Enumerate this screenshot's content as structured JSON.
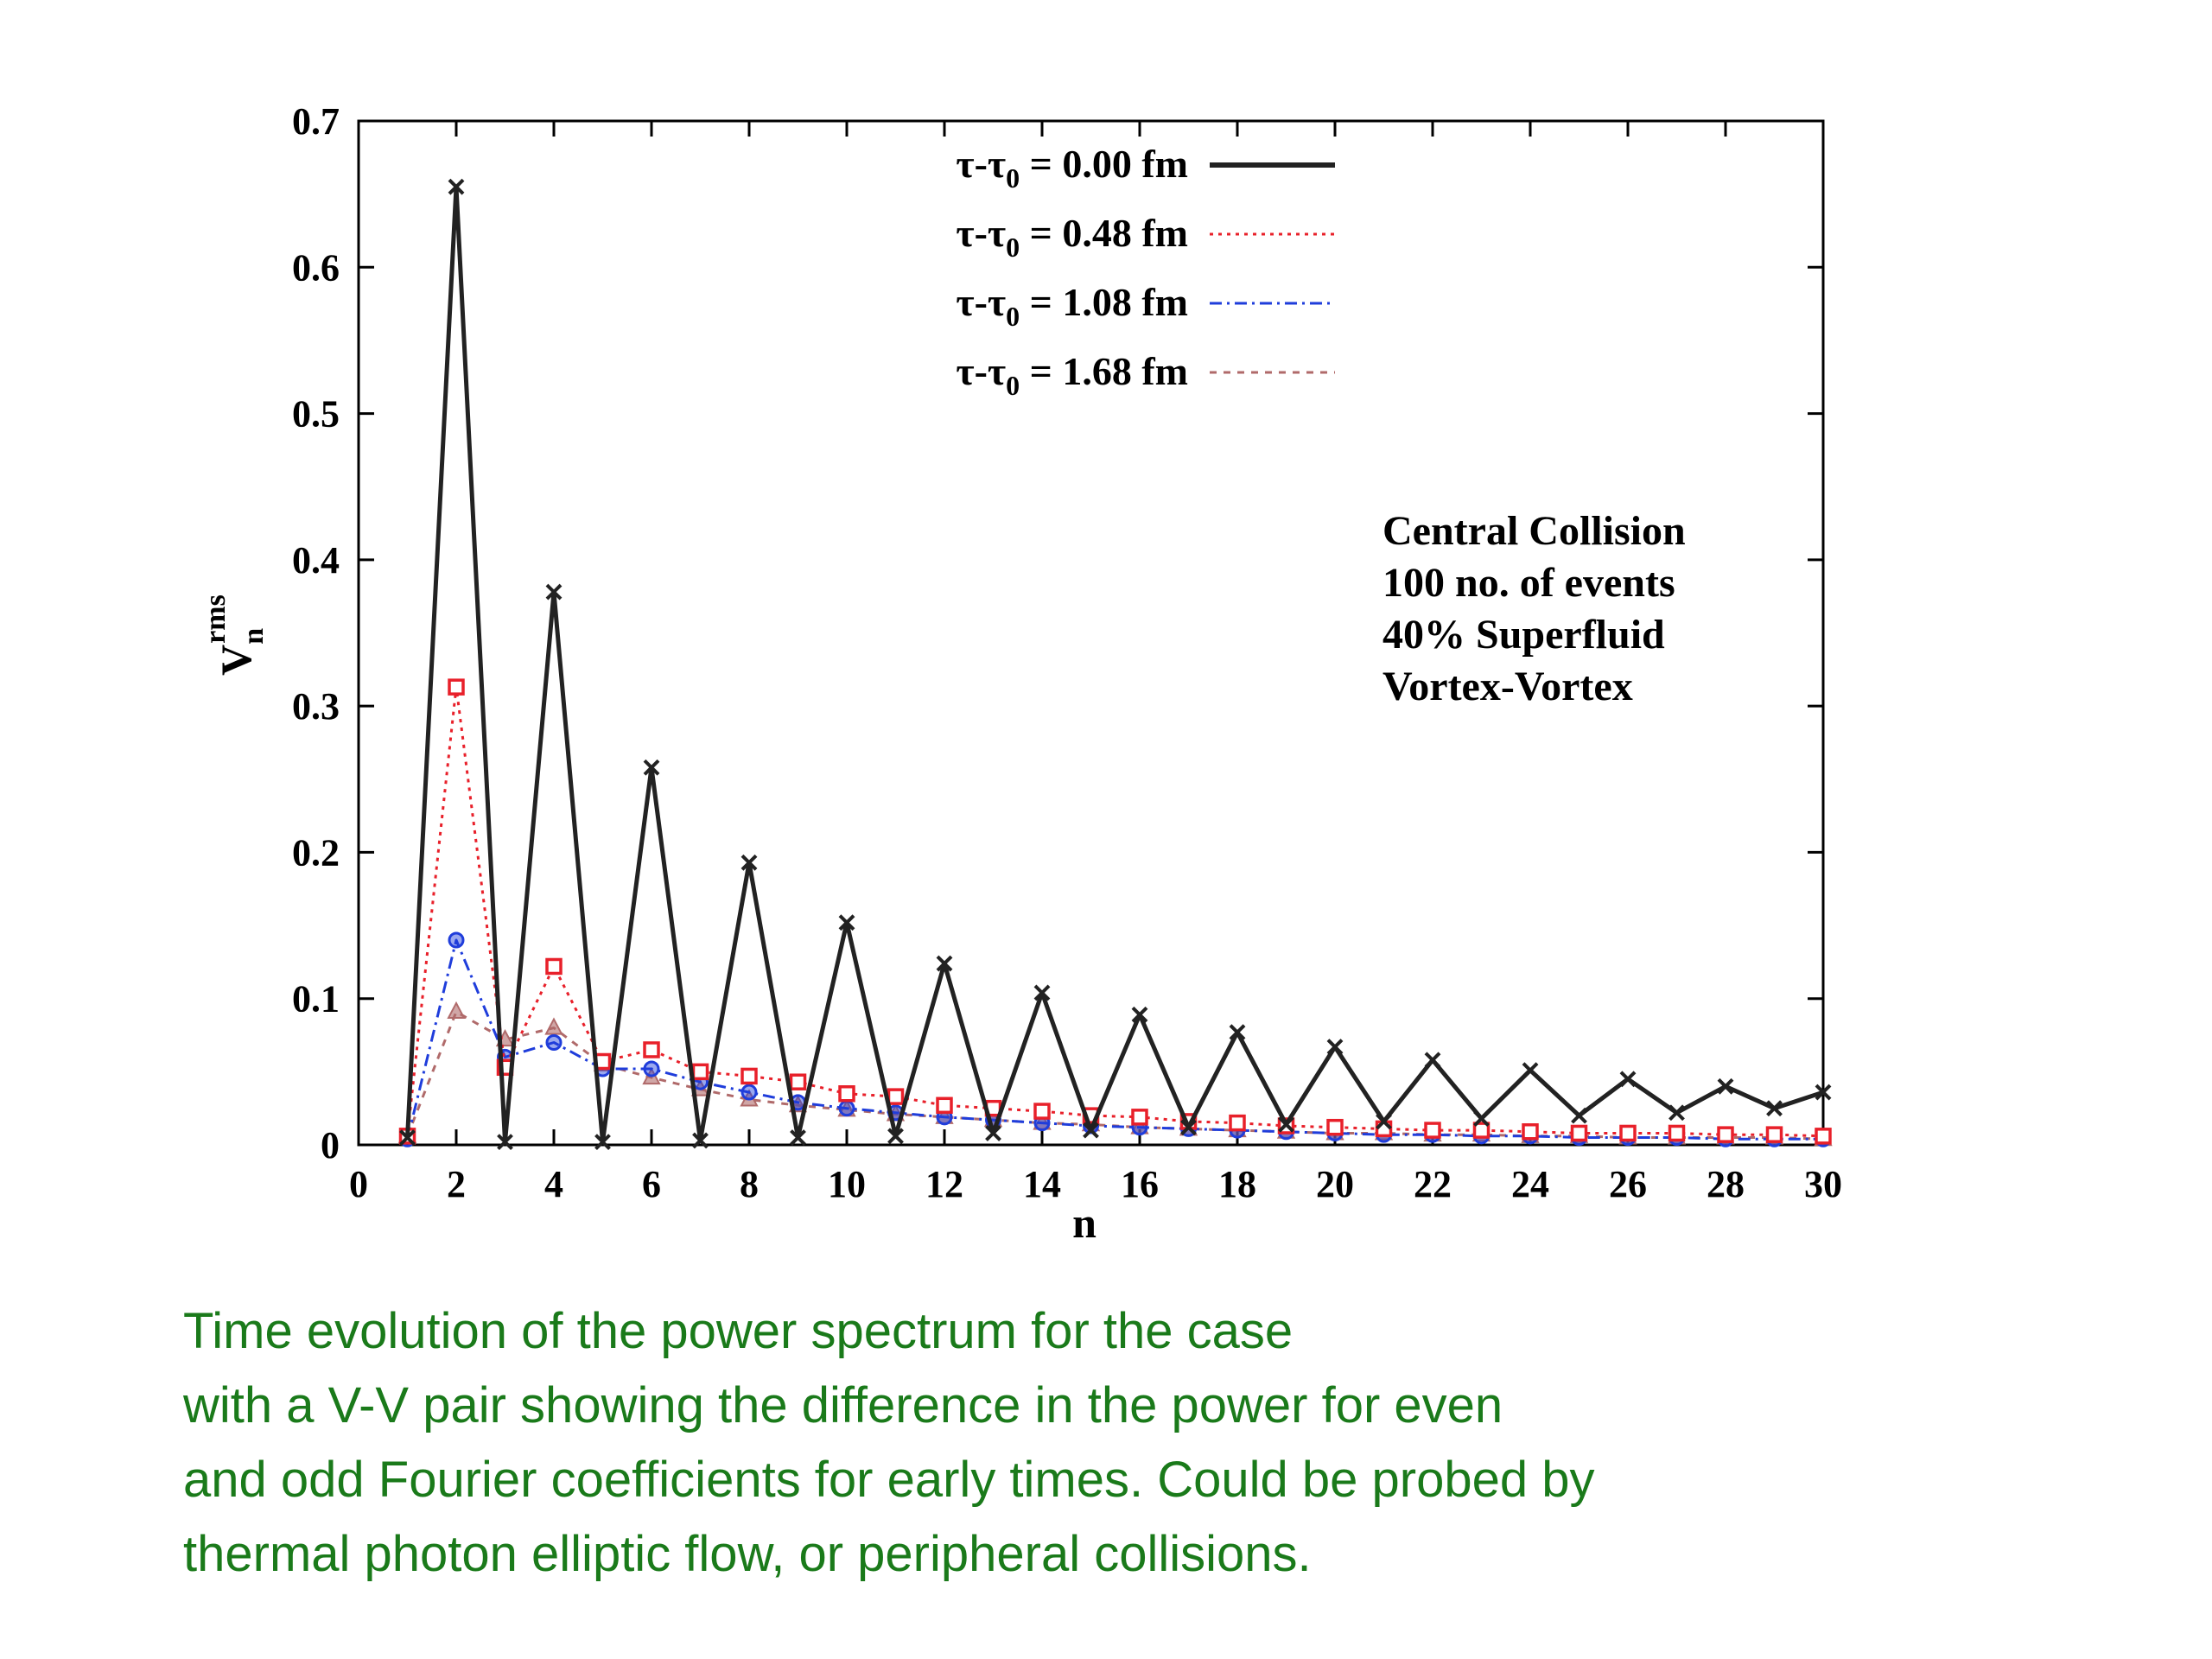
{
  "chart_data": {
    "type": "line",
    "xlabel": "n",
    "ylabel": "V",
    "ylabel_sub": "n",
    "ylabel_sup": "rms",
    "xlim": [
      0,
      30
    ],
    "ylim": [
      0,
      0.7
    ],
    "x_ticks": [
      0,
      2,
      4,
      6,
      8,
      10,
      12,
      14,
      16,
      18,
      20,
      22,
      24,
      26,
      28,
      30
    ],
    "y_ticks": [
      0,
      0.1,
      0.2,
      0.3,
      0.4,
      0.5,
      0.6,
      0.7
    ],
    "y_tick_labels": [
      "0",
      "0.1",
      "0.2",
      "0.3",
      "0.4",
      "0.5",
      "0.6",
      "0.7"
    ],
    "grid": false,
    "legend_position": "top-center",
    "series": [
      {
        "name": "τ-τ0 = 0.00 fm",
        "legend_prefix": "τ-τ",
        "legend_sub": "0",
        "legend_suffix": " = 0.00 fm",
        "color": "#222222",
        "dash": "",
        "marker": "x",
        "width": 5,
        "x": [
          1,
          2,
          3,
          4,
          5,
          6,
          7,
          8,
          9,
          10,
          11,
          12,
          13,
          14,
          15,
          16,
          17,
          18,
          19,
          20,
          21,
          22,
          23,
          24,
          25,
          26,
          27,
          28,
          29,
          30
        ],
        "y": [
          0.005,
          0.655,
          0.002,
          0.378,
          0.002,
          0.258,
          0.003,
          0.193,
          0.005,
          0.152,
          0.006,
          0.124,
          0.008,
          0.104,
          0.01,
          0.089,
          0.012,
          0.077,
          0.014,
          0.067,
          0.016,
          0.058,
          0.018,
          0.051,
          0.02,
          0.045,
          0.022,
          0.04,
          0.025,
          0.036
        ]
      },
      {
        "name": "τ-τ0 = 0.48 fm",
        "legend_prefix": "τ-τ",
        "legend_sub": "0",
        "legend_suffix": " = 0.48 fm",
        "color": "#e8202a",
        "dash": "4,6",
        "marker": "square",
        "width": 3,
        "x": [
          1,
          2,
          3,
          4,
          5,
          6,
          7,
          8,
          9,
          10,
          11,
          12,
          13,
          14,
          15,
          16,
          17,
          18,
          19,
          20,
          21,
          22,
          23,
          24,
          25,
          26,
          27,
          28,
          29,
          30
        ],
        "y": [
          0.006,
          0.313,
          0.053,
          0.122,
          0.057,
          0.065,
          0.05,
          0.047,
          0.043,
          0.035,
          0.033,
          0.027,
          0.025,
          0.023,
          0.02,
          0.019,
          0.016,
          0.015,
          0.013,
          0.012,
          0.011,
          0.01,
          0.01,
          0.009,
          0.008,
          0.008,
          0.008,
          0.007,
          0.007,
          0.006
        ]
      },
      {
        "name": "τ-τ0 = 1.08 fm",
        "legend_prefix": "τ-τ",
        "legend_sub": "0",
        "legend_suffix": " = 1.08 fm",
        "color": "#1f3ddb",
        "dash": "14,6,3,6",
        "marker": "circle",
        "width": 3,
        "x": [
          1,
          2,
          3,
          4,
          5,
          6,
          7,
          8,
          9,
          10,
          11,
          12,
          13,
          14,
          15,
          16,
          17,
          18,
          19,
          20,
          21,
          22,
          23,
          24,
          25,
          26,
          27,
          28,
          29,
          30
        ],
        "y": [
          0.004,
          0.14,
          0.06,
          0.07,
          0.052,
          0.052,
          0.043,
          0.036,
          0.029,
          0.025,
          0.022,
          0.019,
          0.017,
          0.015,
          0.013,
          0.012,
          0.011,
          0.01,
          0.009,
          0.008,
          0.007,
          0.007,
          0.006,
          0.006,
          0.005,
          0.005,
          0.005,
          0.004,
          0.004,
          0.004
        ]
      },
      {
        "name": "τ-τ0 = 1.68 fm",
        "legend_prefix": "τ-τ",
        "legend_sub": "0",
        "legend_suffix": " = 1.68 fm",
        "color": "#b06a6a",
        "dash": "8,8",
        "marker": "triangle",
        "width": 3,
        "x": [
          1,
          2,
          3,
          4,
          5,
          6,
          7,
          8,
          9,
          10,
          11,
          12,
          13,
          14,
          15,
          16,
          17,
          18,
          19,
          20,
          21,
          22,
          23,
          24,
          25,
          26,
          27,
          28,
          29,
          30
        ],
        "y": [
          0.006,
          0.091,
          0.072,
          0.08,
          0.055,
          0.046,
          0.038,
          0.031,
          0.027,
          0.024,
          0.021,
          0.019,
          0.017,
          0.015,
          0.014,
          0.012,
          0.011,
          0.01,
          0.009,
          0.008,
          0.008,
          0.007,
          0.007,
          0.006,
          0.006,
          0.005,
          0.005,
          0.005,
          0.005,
          0.004
        ]
      }
    ],
    "annotations": [
      "Central Collision",
      "100 no. of events",
      "40% Superfluid",
      "Vortex-Vortex"
    ]
  },
  "caption": {
    "lines": [
      "Time evolution of the power spectrum for the case",
      "with a V-V pair showing the difference in the power for even",
      "and odd Fourier coefficients for early times. Could be probed by",
      "thermal photon elliptic flow, or peripheral collisions."
    ]
  }
}
